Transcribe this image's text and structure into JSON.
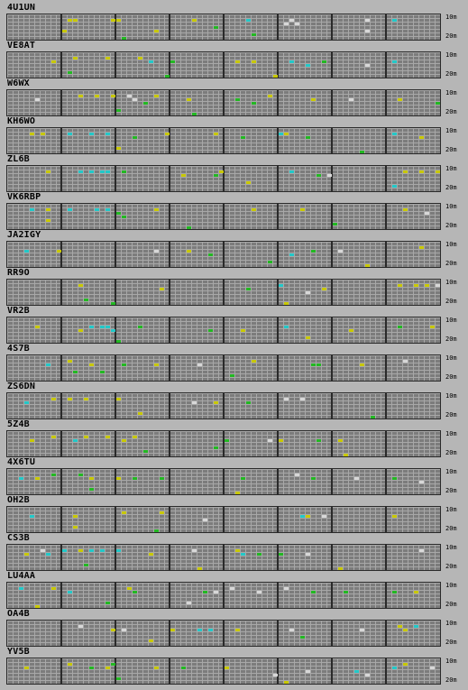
{
  "band_labels": {
    "top": "10m",
    "bottom": "20m"
  },
  "colors": {
    "yellow": "#c8c800",
    "cyan": "#22c8c8",
    "green": "#22b822",
    "white": "#d8d8d8",
    "lime": "#a8d800"
  },
  "stations": [
    {
      "call": "4U1UN",
      "dots": [
        [
          11,
          1,
          "yellow"
        ],
        [
          12,
          1,
          "yellow"
        ],
        [
          19,
          1,
          "yellow"
        ],
        [
          20,
          1,
          "yellow"
        ],
        [
          34,
          1,
          "yellow"
        ],
        [
          44,
          1,
          "cyan"
        ],
        [
          51,
          2,
          "white"
        ],
        [
          52,
          1,
          "white"
        ],
        [
          53,
          2,
          "white"
        ],
        [
          66,
          1,
          "white"
        ],
        [
          71,
          1,
          "cyan"
        ],
        [
          38,
          3,
          "green"
        ],
        [
          45,
          5,
          "green"
        ],
        [
          27,
          4,
          "yellow"
        ],
        [
          21,
          6,
          "green"
        ],
        [
          10,
          4,
          "yellow"
        ],
        [
          66,
          4,
          "white"
        ]
      ]
    },
    {
      "call": "VE8AT",
      "dots": [
        [
          8,
          2,
          "yellow"
        ],
        [
          12,
          1,
          "yellow"
        ],
        [
          18,
          1,
          "yellow"
        ],
        [
          24,
          1,
          "yellow"
        ],
        [
          26,
          2,
          "cyan"
        ],
        [
          30,
          2,
          "green"
        ],
        [
          42,
          2,
          "yellow"
        ],
        [
          45,
          2,
          "yellow"
        ],
        [
          52,
          2,
          "cyan"
        ],
        [
          55,
          3,
          "cyan"
        ],
        [
          58,
          2,
          "green"
        ],
        [
          66,
          3,
          "white"
        ],
        [
          71,
          2,
          "cyan"
        ],
        [
          80,
          2,
          "green"
        ],
        [
          11,
          5,
          "green"
        ],
        [
          29,
          6,
          "green"
        ],
        [
          49,
          6,
          "yellow"
        ]
      ]
    },
    {
      "call": "W6WX",
      "dots": [
        [
          5,
          2,
          "white"
        ],
        [
          13,
          1,
          "yellow"
        ],
        [
          16,
          1,
          "yellow"
        ],
        [
          19,
          1,
          "yellow"
        ],
        [
          22,
          1,
          "white"
        ],
        [
          23,
          2,
          "white"
        ],
        [
          25,
          3,
          "green"
        ],
        [
          27,
          1,
          "yellow"
        ],
        [
          33,
          2,
          "yellow"
        ],
        [
          42,
          2,
          "green"
        ],
        [
          45,
          3,
          "green"
        ],
        [
          48,
          1,
          "yellow"
        ],
        [
          56,
          2,
          "yellow"
        ],
        [
          63,
          2,
          "white"
        ],
        [
          72,
          2,
          "yellow"
        ],
        [
          79,
          3,
          "green"
        ],
        [
          20,
          5,
          "green"
        ],
        [
          34,
          6,
          "green"
        ]
      ]
    },
    {
      "call": "KH6WO",
      "dots": [
        [
          4,
          1,
          "yellow"
        ],
        [
          6,
          1,
          "yellow"
        ],
        [
          11,
          1,
          "cyan"
        ],
        [
          15,
          1,
          "cyan"
        ],
        [
          18,
          1,
          "cyan"
        ],
        [
          23,
          2,
          "green"
        ],
        [
          29,
          1,
          "yellow"
        ],
        [
          38,
          1,
          "yellow"
        ],
        [
          43,
          2,
          "green"
        ],
        [
          50,
          1,
          "cyan"
        ],
        [
          51,
          1,
          "yellow"
        ],
        [
          55,
          2,
          "green"
        ],
        [
          71,
          1,
          "cyan"
        ],
        [
          76,
          2,
          "yellow"
        ],
        [
          65,
          6,
          "green"
        ],
        [
          20,
          5,
          "yellow"
        ]
      ]
    },
    {
      "call": "ZL6B",
      "dots": [
        [
          7,
          1,
          "yellow"
        ],
        [
          13,
          1,
          "cyan"
        ],
        [
          15,
          1,
          "cyan"
        ],
        [
          17,
          1,
          "cyan"
        ],
        [
          18,
          1,
          "cyan"
        ],
        [
          21,
          1,
          "green"
        ],
        [
          32,
          2,
          "yellow"
        ],
        [
          38,
          2,
          "green"
        ],
        [
          39,
          1,
          "yellow"
        ],
        [
          52,
          1,
          "cyan"
        ],
        [
          57,
          2,
          "green"
        ],
        [
          59,
          2,
          "white"
        ],
        [
          73,
          1,
          "yellow"
        ],
        [
          76,
          1,
          "yellow"
        ],
        [
          79,
          1,
          "yellow"
        ],
        [
          44,
          4,
          "yellow"
        ],
        [
          71,
          5,
          "cyan"
        ]
      ]
    },
    {
      "call": "VK6RBP",
      "dots": [
        [
          4,
          1,
          "cyan"
        ],
        [
          7,
          1,
          "yellow"
        ],
        [
          11,
          1,
          "cyan"
        ],
        [
          16,
          1,
          "cyan"
        ],
        [
          18,
          1,
          "cyan"
        ],
        [
          20,
          2,
          "green"
        ],
        [
          21,
          3,
          "green"
        ],
        [
          27,
          1,
          "yellow"
        ],
        [
          45,
          1,
          "yellow"
        ],
        [
          54,
          1,
          "yellow"
        ],
        [
          73,
          1,
          "yellow"
        ],
        [
          77,
          2,
          "white"
        ],
        [
          33,
          6,
          "green"
        ],
        [
          7,
          4,
          "yellow"
        ],
        [
          60,
          5,
          "green"
        ]
      ]
    },
    {
      "call": "JA2IGY",
      "dots": [
        [
          3,
          2,
          "cyan"
        ],
        [
          9,
          2,
          "yellow"
        ],
        [
          27,
          2,
          "white"
        ],
        [
          33,
          2,
          "yellow"
        ],
        [
          37,
          3,
          "green"
        ],
        [
          52,
          3,
          "cyan"
        ],
        [
          56,
          2,
          "green"
        ],
        [
          61,
          2,
          "white"
        ],
        [
          76,
          1,
          "yellow"
        ],
        [
          80,
          1,
          "yellow"
        ],
        [
          48,
          5,
          "green"
        ],
        [
          66,
          6,
          "yellow"
        ]
      ]
    },
    {
      "call": "RR9O",
      "dots": [
        [
          13,
          1,
          "yellow"
        ],
        [
          28,
          2,
          "yellow"
        ],
        [
          44,
          2,
          "green"
        ],
        [
          50,
          1,
          "cyan"
        ],
        [
          55,
          3,
          "white"
        ],
        [
          58,
          2,
          "yellow"
        ],
        [
          72,
          1,
          "yellow"
        ],
        [
          75,
          1,
          "yellow"
        ],
        [
          77,
          1,
          "yellow"
        ],
        [
          79,
          1,
          "white"
        ],
        [
          14,
          5,
          "green"
        ],
        [
          19,
          6,
          "green"
        ],
        [
          51,
          6,
          "yellow"
        ]
      ]
    },
    {
      "call": "VR2B",
      "dots": [
        [
          5,
          2,
          "yellow"
        ],
        [
          13,
          3,
          "yellow"
        ],
        [
          15,
          2,
          "cyan"
        ],
        [
          17,
          2,
          "cyan"
        ],
        [
          18,
          2,
          "cyan"
        ],
        [
          19,
          3,
          "cyan"
        ],
        [
          24,
          2,
          "green"
        ],
        [
          37,
          3,
          "green"
        ],
        [
          43,
          3,
          "yellow"
        ],
        [
          51,
          2,
          "cyan"
        ],
        [
          63,
          3,
          "yellow"
        ],
        [
          72,
          2,
          "green"
        ],
        [
          78,
          2,
          "yellow"
        ],
        [
          20,
          6,
          "green"
        ],
        [
          55,
          5,
          "yellow"
        ]
      ]
    },
    {
      "call": "4S7B",
      "dots": [
        [
          7,
          2,
          "cyan"
        ],
        [
          11,
          1,
          "yellow"
        ],
        [
          15,
          2,
          "yellow"
        ],
        [
          17,
          4,
          "green"
        ],
        [
          21,
          2,
          "green"
        ],
        [
          27,
          2,
          "yellow"
        ],
        [
          35,
          2,
          "white"
        ],
        [
          45,
          1,
          "yellow"
        ],
        [
          56,
          2,
          "green"
        ],
        [
          57,
          2,
          "green"
        ],
        [
          65,
          2,
          "yellow"
        ],
        [
          73,
          1,
          "white"
        ],
        [
          12,
          4,
          "green"
        ],
        [
          41,
          5,
          "green"
        ]
      ]
    },
    {
      "call": "ZS6DN",
      "dots": [
        [
          3,
          2,
          "cyan"
        ],
        [
          8,
          1,
          "yellow"
        ],
        [
          11,
          1,
          "yellow"
        ],
        [
          14,
          1,
          "yellow"
        ],
        [
          20,
          1,
          "yellow"
        ],
        [
          34,
          2,
          "white"
        ],
        [
          38,
          2,
          "yellow"
        ],
        [
          44,
          2,
          "green"
        ],
        [
          51,
          1,
          "white"
        ],
        [
          54,
          1,
          "white"
        ],
        [
          80,
          1,
          "green"
        ],
        [
          24,
          5,
          "yellow"
        ],
        [
          67,
          6,
          "green"
        ]
      ]
    },
    {
      "call": "5Z4B",
      "dots": [
        [
          4,
          2,
          "yellow"
        ],
        [
          8,
          1,
          "yellow"
        ],
        [
          12,
          2,
          "cyan"
        ],
        [
          14,
          1,
          "yellow"
        ],
        [
          18,
          1,
          "yellow"
        ],
        [
          21,
          2,
          "yellow"
        ],
        [
          23,
          1,
          "yellow"
        ],
        [
          40,
          2,
          "green"
        ],
        [
          48,
          2,
          "white"
        ],
        [
          50,
          2,
          "yellow"
        ],
        [
          57,
          2,
          "green"
        ],
        [
          61,
          2,
          "yellow"
        ],
        [
          38,
          4,
          "green"
        ],
        [
          25,
          5,
          "green"
        ],
        [
          62,
          6,
          "yellow"
        ]
      ]
    },
    {
      "call": "4X6TU",
      "dots": [
        [
          2,
          2,
          "cyan"
        ],
        [
          5,
          2,
          "yellow"
        ],
        [
          8,
          1,
          "green"
        ],
        [
          13,
          1,
          "green"
        ],
        [
          15,
          2,
          "yellow"
        ],
        [
          20,
          2,
          "yellow"
        ],
        [
          23,
          2,
          "green"
        ],
        [
          28,
          2,
          "green"
        ],
        [
          43,
          2,
          "green"
        ],
        [
          53,
          1,
          "white"
        ],
        [
          56,
          2,
          "green"
        ],
        [
          64,
          2,
          "white"
        ],
        [
          71,
          2,
          "green"
        ],
        [
          76,
          3,
          "white"
        ],
        [
          80,
          1,
          "green"
        ],
        [
          15,
          5,
          "green"
        ],
        [
          42,
          6,
          "yellow"
        ]
      ]
    },
    {
      "call": "OH2B",
      "dots": [
        [
          4,
          2,
          "cyan"
        ],
        [
          12,
          2,
          "yellow"
        ],
        [
          21,
          1,
          "yellow"
        ],
        [
          28,
          1,
          "yellow"
        ],
        [
          36,
          3,
          "white"
        ],
        [
          54,
          2,
          "cyan"
        ],
        [
          55,
          2,
          "yellow"
        ],
        [
          58,
          2,
          "white"
        ],
        [
          71,
          2,
          "yellow"
        ],
        [
          80,
          2,
          "white"
        ],
        [
          27,
          6,
          "green"
        ],
        [
          12,
          5,
          "yellow"
        ]
      ]
    },
    {
      "call": "CS3B",
      "dots": [
        [
          3,
          2,
          "yellow"
        ],
        [
          6,
          1,
          "white"
        ],
        [
          7,
          2,
          "cyan"
        ],
        [
          10,
          1,
          "cyan"
        ],
        [
          13,
          1,
          "yellow"
        ],
        [
          15,
          1,
          "cyan"
        ],
        [
          17,
          1,
          "cyan"
        ],
        [
          20,
          1,
          "cyan"
        ],
        [
          26,
          2,
          "yellow"
        ],
        [
          34,
          1,
          "white"
        ],
        [
          42,
          1,
          "yellow"
        ],
        [
          43,
          2,
          "cyan"
        ],
        [
          46,
          2,
          "green"
        ],
        [
          50,
          2,
          "green"
        ],
        [
          55,
          2,
          "white"
        ],
        [
          76,
          1,
          "white"
        ],
        [
          80,
          2,
          "green"
        ],
        [
          14,
          5,
          "green"
        ],
        [
          35,
          6,
          "yellow"
        ],
        [
          61,
          6,
          "yellow"
        ]
      ]
    },
    {
      "call": "LU4AA",
      "dots": [
        [
          2,
          1,
          "cyan"
        ],
        [
          8,
          1,
          "yellow"
        ],
        [
          11,
          2,
          "cyan"
        ],
        [
          22,
          1,
          "yellow"
        ],
        [
          23,
          2,
          "green"
        ],
        [
          36,
          2,
          "green"
        ],
        [
          38,
          2,
          "white"
        ],
        [
          41,
          1,
          "white"
        ],
        [
          46,
          2,
          "white"
        ],
        [
          51,
          1,
          "white"
        ],
        [
          56,
          2,
          "green"
        ],
        [
          62,
          2,
          "green"
        ],
        [
          71,
          2,
          "green"
        ],
        [
          75,
          2,
          "yellow"
        ],
        [
          80,
          2,
          "green"
        ],
        [
          18,
          5,
          "green"
        ],
        [
          5,
          6,
          "yellow"
        ],
        [
          33,
          5,
          "white"
        ]
      ]
    },
    {
      "call": "OA4B",
      "dots": [
        [
          13,
          1,
          "white"
        ],
        [
          19,
          2,
          "yellow"
        ],
        [
          21,
          2,
          "white"
        ],
        [
          30,
          2,
          "yellow"
        ],
        [
          35,
          2,
          "cyan"
        ],
        [
          37,
          2,
          "cyan"
        ],
        [
          42,
          2,
          "yellow"
        ],
        [
          52,
          2,
          "white"
        ],
        [
          65,
          2,
          "white"
        ],
        [
          72,
          1,
          "yellow"
        ],
        [
          73,
          2,
          "yellow"
        ],
        [
          75,
          1,
          "cyan"
        ],
        [
          80,
          2,
          "green"
        ],
        [
          26,
          5,
          "yellow"
        ],
        [
          54,
          4,
          "green"
        ]
      ]
    },
    {
      "call": "YV5B",
      "dots": [
        [
          3,
          2,
          "yellow"
        ],
        [
          11,
          1,
          "yellow"
        ],
        [
          15,
          2,
          "green"
        ],
        [
          18,
          2,
          "yellow"
        ],
        [
          19,
          1,
          "green"
        ],
        [
          27,
          2,
          "yellow"
        ],
        [
          32,
          2,
          "green"
        ],
        [
          40,
          2,
          "yellow"
        ],
        [
          49,
          4,
          "white"
        ],
        [
          55,
          3,
          "white"
        ],
        [
          64,
          3,
          "cyan"
        ],
        [
          66,
          4,
          "white"
        ],
        [
          71,
          2,
          "cyan"
        ],
        [
          73,
          1,
          "yellow"
        ],
        [
          78,
          2,
          "white"
        ],
        [
          20,
          5,
          "green"
        ],
        [
          51,
          6,
          "yellow"
        ]
      ]
    }
  ]
}
